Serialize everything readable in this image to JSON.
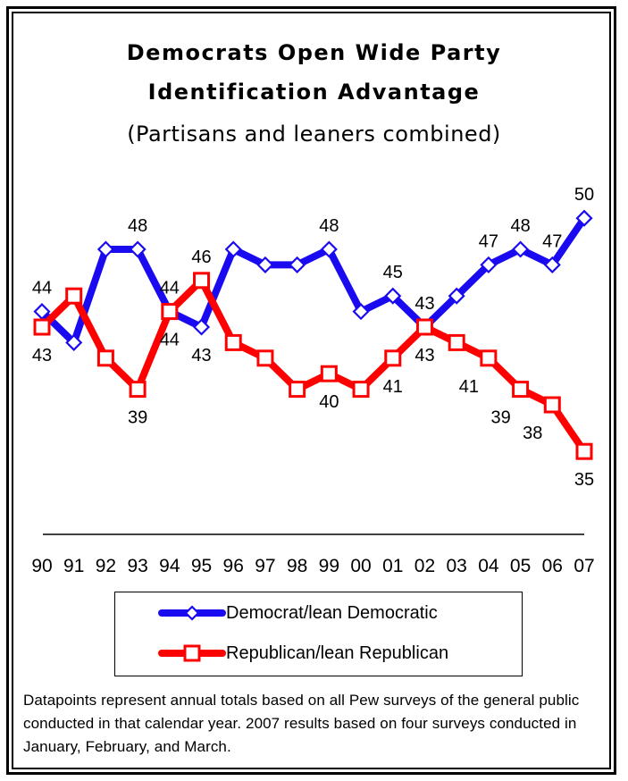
{
  "chart_data": {
    "type": "line",
    "title": "Democrats Open Wide Party Identification Advantage",
    "title_lines": [
      "Democrats Open Wide Party",
      "Identification Advantage"
    ],
    "subtitle": "(Partisans and leaners combined)",
    "xlabel": "",
    "ylabel": "",
    "categories": [
      "90",
      "91",
      "92",
      "93",
      "94",
      "95",
      "96",
      "97",
      "98",
      "99",
      "00",
      "01",
      "02",
      "03",
      "04",
      "05",
      "06",
      "07"
    ],
    "ylim": [
      33,
      52
    ],
    "grid": false,
    "legend_position": "bottom",
    "series": [
      {
        "name": "Democrat/lean Democratic",
        "color": "#1a0af0",
        "marker": "diamond",
        "values": [
          44,
          42,
          48,
          48,
          44,
          43,
          48,
          47,
          47,
          48,
          44,
          45,
          43,
          45,
          47,
          48,
          47,
          50
        ],
        "labeled": [
          true,
          false,
          false,
          true,
          true,
          true,
          false,
          false,
          false,
          true,
          false,
          true,
          true,
          false,
          true,
          true,
          true,
          true
        ],
        "label_position": [
          "above",
          "",
          "",
          "above",
          "above",
          "below",
          "",
          "",
          "",
          "above",
          "",
          "above",
          "above",
          "",
          "above",
          "above",
          "above",
          "above"
        ]
      },
      {
        "name": "Republican/lean Republican",
        "color": "#ff0000",
        "marker": "square",
        "values": [
          43,
          45,
          41,
          39,
          44,
          46,
          42,
          41,
          39,
          40,
          39,
          41,
          43,
          42,
          41,
          39,
          38,
          35
        ],
        "labeled": [
          true,
          false,
          false,
          true,
          true,
          true,
          false,
          false,
          false,
          true,
          false,
          true,
          true,
          false,
          true,
          true,
          true,
          true
        ],
        "label_position": [
          "below",
          "",
          "",
          "below",
          "below",
          "above",
          "",
          "",
          "",
          "below",
          "",
          "below",
          "below",
          "",
          "left",
          "left",
          "left",
          "below"
        ]
      }
    ]
  },
  "legend": {
    "items": [
      {
        "label": "Democrat/lean Democratic"
      },
      {
        "label": "Republican/lean Republican"
      }
    ]
  },
  "footnote": "Datapoints represent annual totals based on all Pew surveys of the general public conducted in that calendar year.  2007 results based on four surveys conducted in January, February, and March."
}
